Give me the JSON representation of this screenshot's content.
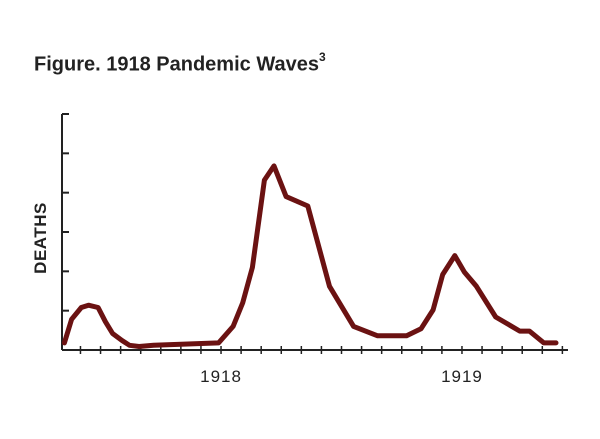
{
  "title": "Figure. 1918 Pandemic Waves",
  "title_superscript": "3",
  "chart_data": {
    "type": "line",
    "title": "Figure. 1918 Pandemic Waves",
    "xlabel": "",
    "ylabel": "DEATHS",
    "x_tick_labels": [
      {
        "label": "1918",
        "x": 1918.0
      },
      {
        "label": "1919",
        "x": 1919.0
      }
    ],
    "xlim": [
      1917.34,
      1919.44
    ],
    "ylim": [
      0,
      100
    ],
    "grid": false,
    "legend": "none",
    "line_color": "#6b1212",
    "series": [
      {
        "name": "",
        "x": [
          1917.35,
          1917.38,
          1917.42,
          1917.45,
          1917.49,
          1917.52,
          1917.55,
          1917.59,
          1917.62,
          1917.66,
          1917.72,
          1917.99,
          1918.05,
          1918.09,
          1918.13,
          1918.18,
          1918.22,
          1918.27,
          1918.36,
          1918.45,
          1918.55,
          1918.65,
          1918.71,
          1918.77,
          1918.83,
          1918.88,
          1918.92,
          1918.97,
          1919.01,
          1919.06,
          1919.14,
          1919.24,
          1919.28,
          1919.34,
          1919.39
        ],
        "y": [
          3,
          13,
          18,
          19,
          18,
          12,
          7,
          4,
          2,
          1.5,
          2,
          3,
          10,
          20,
          35,
          72,
          78,
          65,
          61,
          27,
          10,
          6,
          6,
          6,
          9,
          17,
          32,
          40,
          33,
          27,
          14,
          8,
          8,
          3,
          3
        ]
      }
    ]
  }
}
